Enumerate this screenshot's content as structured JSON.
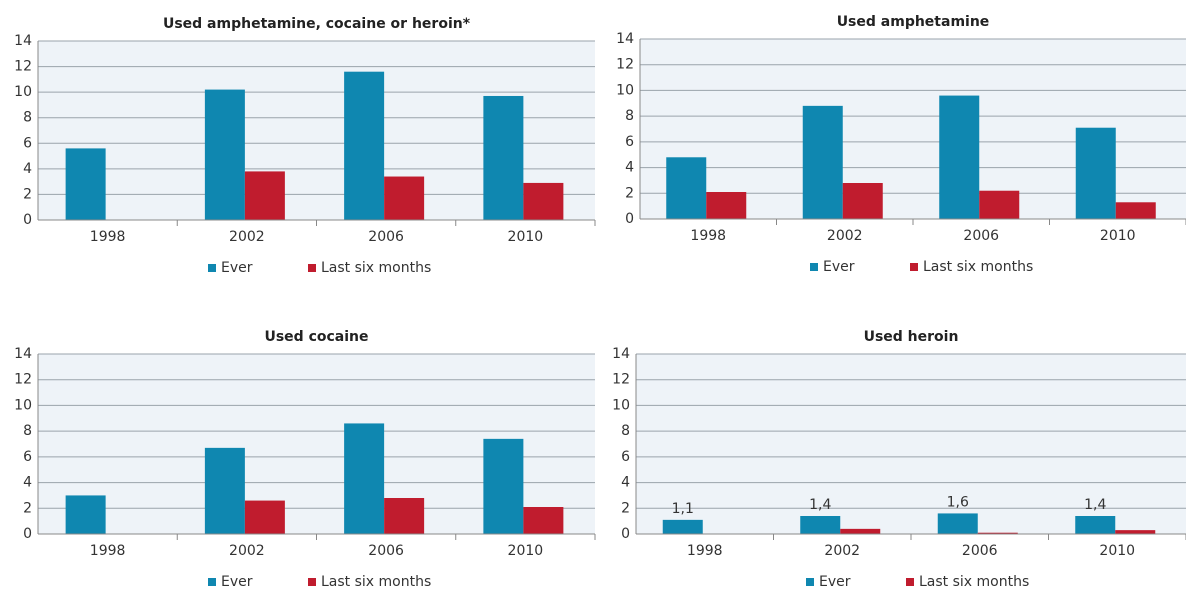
{
  "chart_data": [
    {
      "type": "bar",
      "title": "Used amphetamine, cocaine or heroin*",
      "categories": [
        "1998",
        "2002",
        "2006",
        "2010"
      ],
      "series": [
        {
          "name": "Ever",
          "color": "#0f87b0",
          "values": [
            5.6,
            10.2,
            11.6,
            9.7
          ]
        },
        {
          "name": "Last six months",
          "color": "#c01c2e",
          "values": [
            null,
            3.8,
            3.4,
            2.9
          ]
        }
      ],
      "ylim": [
        0,
        14
      ],
      "yticks": [
        0,
        2,
        4,
        6,
        8,
        10,
        12,
        14
      ],
      "grid": true
    },
    {
      "type": "bar",
      "title": "Used amphetamine",
      "categories": [
        "1998",
        "2002",
        "2006",
        "2010"
      ],
      "series": [
        {
          "name": "Ever",
          "color": "#0f87b0",
          "values": [
            4.8,
            8.8,
            9.6,
            7.1
          ]
        },
        {
          "name": "Last six months",
          "color": "#c01c2e",
          "values": [
            2.1,
            2.8,
            2.2,
            1.3
          ]
        }
      ],
      "ylim": [
        0,
        14
      ],
      "yticks": [
        0,
        2,
        4,
        6,
        8,
        10,
        12,
        14
      ],
      "grid": true
    },
    {
      "type": "bar",
      "title": "Used cocaine",
      "categories": [
        "1998",
        "2002",
        "2006",
        "2010"
      ],
      "series": [
        {
          "name": "Ever",
          "color": "#0f87b0",
          "values": [
            3.0,
            6.7,
            8.6,
            7.4
          ]
        },
        {
          "name": "Last six months",
          "color": "#c01c2e",
          "values": [
            null,
            2.6,
            2.8,
            2.1
          ]
        }
      ],
      "ylim": [
        0,
        14
      ],
      "yticks": [
        0,
        2,
        4,
        6,
        8,
        10,
        12,
        14
      ],
      "grid": true
    },
    {
      "type": "bar",
      "title": "Used heroin",
      "categories": [
        "1998",
        "2002",
        "2006",
        "2010"
      ],
      "series": [
        {
          "name": "Ever",
          "color": "#0f87b0",
          "values": [
            1.1,
            1.4,
            1.6,
            1.4
          ],
          "value_labels": [
            "1,1",
            "1,4",
            "1,6",
            "1,4"
          ]
        },
        {
          "name": "Last six months",
          "color": "#c01c2e",
          "values": [
            null,
            0.4,
            0.1,
            0.3
          ]
        }
      ],
      "ylim": [
        0,
        14
      ],
      "yticks": [
        0,
        2,
        4,
        6,
        8,
        10,
        12,
        14
      ],
      "grid": true
    }
  ]
}
